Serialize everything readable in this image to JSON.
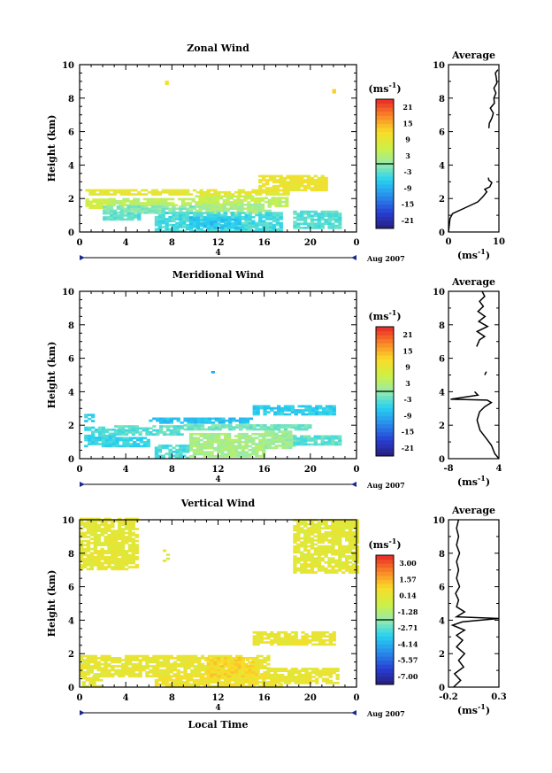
{
  "chart_data": [
    {
      "type": "heatmap",
      "title": "Zonal Wind",
      "ylabel": "Height (km)",
      "xlim": [
        0,
        24
      ],
      "ylim": [
        0,
        10
      ],
      "x_ticks": [
        "0",
        "4",
        "8",
        "12",
        "16",
        "20",
        "0"
      ],
      "y_ticks": [
        "0",
        "2",
        "4",
        "6",
        "8",
        "10"
      ],
      "date_label": "4",
      "month_label": "Aug 2007",
      "colorbar": {
        "unit": "(ms",
        "unit_exp": "-1",
        "ticks": [
          "21",
          "15",
          "9",
          "3",
          "-3",
          "-9",
          "-15",
          "-21"
        ],
        "range": [
          -24,
          24
        ]
      },
      "field_cells": [
        {
          "t0": 0.5,
          "t1": 2.5,
          "z0": 1.4,
          "z1": 1.9,
          "v": 6
        },
        {
          "t0": 2.5,
          "t1": 10,
          "z0": 1.55,
          "z1": 1.95,
          "v": 4
        },
        {
          "t0": 10,
          "t1": 16,
          "z0": 1.6,
          "z1": 2.1,
          "v": 5
        },
        {
          "t0": 16,
          "t1": 18,
          "z0": 1.5,
          "z1": 2.0,
          "v": 4
        },
        {
          "t0": 2,
          "t1": 10,
          "z0": 1.1,
          "z1": 1.55,
          "v": -1
        },
        {
          "t0": 10,
          "t1": 16.5,
          "z0": 1.1,
          "z1": 1.6,
          "v": 2
        },
        {
          "t0": 6.5,
          "t1": 17.5,
          "z0": 0,
          "z1": 1.1,
          "v": -4
        },
        {
          "t0": 2,
          "t1": 5,
          "z0": 0.7,
          "z1": 1.1,
          "v": -3
        },
        {
          "t0": 9.5,
          "t1": 14,
          "z0": 0.2,
          "z1": 0.9,
          "v": -7
        },
        {
          "t0": 0.5,
          "t1": 18,
          "z0": 2.2,
          "z1": 2.45,
          "v": 9
        },
        {
          "t0": 15.5,
          "t1": 21.5,
          "z0": 2.45,
          "z1": 3.3,
          "v": 10
        },
        {
          "t0": 18.5,
          "t1": 22.5,
          "z0": 0.2,
          "z1": 1.2,
          "v": -3
        },
        {
          "t0": 7.4,
          "t1": 7.7,
          "z0": 8.8,
          "z1": 9.0,
          "v": 10
        },
        {
          "t0": 21.9,
          "t1": 22.2,
          "z0": 8.3,
          "z1": 8.5,
          "v": 11
        }
      ],
      "average": {
        "title": "Average",
        "xlim": [
          0,
          10
        ],
        "ylim": [
          0,
          10
        ],
        "x_ticks": [
          "0",
          "10"
        ],
        "x_tick_values": [
          0,
          10
        ],
        "y_ticks": [
          "0",
          "2",
          "4",
          "6",
          "8",
          "10"
        ],
        "xlabel": "(ms",
        "xlabel_exp": "-1",
        "profile": [
          [
            0.0,
            0.0
          ],
          [
            0.3,
            0.8
          ],
          [
            0.8,
            1.1
          ],
          [
            3.0,
            1.4
          ],
          [
            5.8,
            1.8
          ],
          [
            6.8,
            2.1
          ],
          [
            7.6,
            2.4
          ],
          [
            7.2,
            2.55
          ],
          [
            8.2,
            2.7
          ],
          [
            8.6,
            2.95
          ],
          [
            8.0,
            3.1
          ],
          [
            7.9,
            3.25
          ],
          [
            null,
            null
          ],
          [
            8.0,
            6.2
          ],
          [
            8.1,
            6.5
          ],
          [
            8.6,
            6.8
          ],
          [
            8.9,
            7.1
          ],
          [
            8.3,
            7.4
          ],
          [
            9.1,
            7.7
          ],
          [
            9.0,
            8.0
          ],
          [
            9.4,
            8.3
          ],
          [
            9.0,
            8.6
          ],
          [
            9.6,
            8.9
          ],
          [
            9.5,
            9.2
          ],
          [
            9.3,
            9.5
          ],
          [
            9.8,
            9.7
          ]
        ]
      }
    },
    {
      "type": "heatmap",
      "title": "Meridional Wind",
      "ylabel": "Height (km)",
      "xlim": [
        0,
        24
      ],
      "ylim": [
        0,
        10
      ],
      "x_ticks": [
        "0",
        "4",
        "8",
        "12",
        "16",
        "20",
        "0"
      ],
      "y_ticks": [
        "0",
        "2",
        "4",
        "6",
        "8",
        "10"
      ],
      "date_label": "4",
      "month_label": "Aug 2007",
      "colorbar": {
        "unit": "(ms",
        "unit_exp": "-1",
        "ticks": [
          "21",
          "15",
          "9",
          "3",
          "-3",
          "-9",
          "-15",
          "-21"
        ],
        "range": [
          -24,
          24
        ]
      },
      "field_cells": [
        {
          "t0": 0.4,
          "t1": 1.2,
          "z0": 2.2,
          "z1": 2.6,
          "v": -6
        },
        {
          "t0": 6,
          "t1": 15,
          "z0": 2.1,
          "z1": 2.4,
          "v": -7
        },
        {
          "t0": 15,
          "t1": 22,
          "z0": 2.6,
          "z1": 3.1,
          "v": -6
        },
        {
          "t0": 0.4,
          "t1": 3,
          "z0": 1.2,
          "z1": 1.9,
          "v": -4
        },
        {
          "t0": 3,
          "t1": 9,
          "z0": 1.4,
          "z1": 1.9,
          "v": -3
        },
        {
          "t0": 9,
          "t1": 20,
          "z0": 1.7,
          "z1": 2.0,
          "v": -2
        },
        {
          "t0": 0.4,
          "t1": 6,
          "z0": 0.7,
          "z1": 1.3,
          "v": -5
        },
        {
          "t0": 9.5,
          "t1": 16,
          "z0": 0.1,
          "z1": 1.5,
          "v": 2
        },
        {
          "t0": 16,
          "t1": 18.5,
          "z0": 0.6,
          "z1": 1.6,
          "v": 1
        },
        {
          "t0": 18.5,
          "t1": 22.5,
          "z0": 0.8,
          "z1": 1.4,
          "v": -3
        },
        {
          "t0": 6.5,
          "t1": 9.5,
          "z0": 0,
          "z1": 0.8,
          "v": -4
        },
        {
          "t0": 11.4,
          "t1": 11.6,
          "z0": 5.0,
          "z1": 5.2,
          "v": -8
        }
      ],
      "average": {
        "title": "Average",
        "xlim": [
          -8,
          4
        ],
        "ylim": [
          0,
          10
        ],
        "x_ticks": [
          "-8",
          "4"
        ],
        "x_tick_values": [
          -8,
          4
        ],
        "y_ticks": [
          "0",
          "2",
          "4",
          "6",
          "8",
          "10"
        ],
        "xlabel": "(ms",
        "xlabel_exp": "-1",
        "profile": [
          [
            4.0,
            0.0
          ],
          [
            3.0,
            0.3
          ],
          [
            2.2,
            0.8
          ],
          [
            1.0,
            1.2
          ],
          [
            -0.5,
            1.7
          ],
          [
            -1.2,
            2.3
          ],
          [
            -0.6,
            2.8
          ],
          [
            0.6,
            3.1
          ],
          [
            2.2,
            3.35
          ],
          [
            1.2,
            3.5
          ],
          [
            -7.5,
            3.55
          ],
          [
            -1.0,
            3.8
          ],
          [
            -1.8,
            4.0
          ],
          [
            null,
            null
          ],
          [
            0.6,
            5.0
          ],
          [
            1.0,
            5.2
          ],
          [
            null,
            null
          ],
          [
            -1.3,
            6.7
          ],
          [
            -0.6,
            7.1
          ],
          [
            0.6,
            7.3
          ],
          [
            -1.2,
            7.6
          ],
          [
            1.3,
            7.9
          ],
          [
            -0.8,
            8.2
          ],
          [
            0.7,
            8.5
          ],
          [
            -1.0,
            8.8
          ],
          [
            0.3,
            9.1
          ],
          [
            -0.6,
            9.4
          ],
          [
            0.6,
            9.7
          ],
          [
            0.0,
            10.0
          ]
        ]
      }
    },
    {
      "type": "heatmap",
      "title": "Vertical Wind",
      "ylabel": "Height (km)",
      "xlabel": "Local Time",
      "xlim": [
        0,
        24
      ],
      "ylim": [
        0,
        10
      ],
      "x_ticks": [
        "0",
        "4",
        "8",
        "12",
        "16",
        "20",
        "0"
      ],
      "y_ticks": [
        "0",
        "2",
        "4",
        "6",
        "8",
        "10"
      ],
      "date_label": "4",
      "month_label": "Aug 2007",
      "colorbar": {
        "unit": "(ms",
        "unit_exp": "-1",
        "ticks": [
          "3.00",
          "1.57",
          "0.14",
          "-1.28",
          "-2.71",
          "-4.14",
          "-5.57",
          "-7.00"
        ],
        "range": [
          -7.71,
          3.71
        ]
      },
      "field_cells": [
        {
          "t0": 0,
          "t1": 16.5,
          "z0": 0.6,
          "z1": 1.9,
          "v": 0.2
        },
        {
          "t0": 6.5,
          "t1": 17.5,
          "z0": 0,
          "z1": 0.7,
          "v": 0.5
        },
        {
          "t0": 11,
          "t1": 15.5,
          "z0": 0.6,
          "z1": 1.8,
          "v": 0.9
        },
        {
          "t0": 16.5,
          "t1": 22.5,
          "z0": 0.2,
          "z1": 1.1,
          "v": 0.2
        },
        {
          "t0": 0.2,
          "t1": 2,
          "z0": 0,
          "z1": 0.7,
          "v": 0.1
        },
        {
          "t0": 15,
          "t1": 22,
          "z0": 2.5,
          "z1": 3.3,
          "v": 0.3
        },
        {
          "t0": 0,
          "t1": 5,
          "z0": 7.0,
          "z1": 10,
          "v": 0.1
        },
        {
          "t0": 18.5,
          "t1": 24,
          "z0": 6.8,
          "z1": 10,
          "v": 0.1
        },
        {
          "t0": 7.2,
          "t1": 7.6,
          "z0": 7.5,
          "z1": 8.2,
          "v": 0.1
        }
      ],
      "average": {
        "title": "Average",
        "xlim": [
          -0.2,
          0.3
        ],
        "ylim": [
          0,
          10
        ],
        "x_ticks": [
          "-0.2",
          "0.3"
        ],
        "x_tick_values": [
          -0.2,
          0.3
        ],
        "y_ticks": [
          "0",
          "2",
          "4",
          "6",
          "8",
          "10"
        ],
        "xlabel": "(ms",
        "xlabel_exp": "-1",
        "profile": [
          [
            -0.15,
            0.0
          ],
          [
            -0.08,
            0.4
          ],
          [
            -0.14,
            0.8
          ],
          [
            -0.05,
            1.2
          ],
          [
            -0.1,
            1.6
          ],
          [
            -0.04,
            2.0
          ],
          [
            -0.12,
            2.4
          ],
          [
            -0.06,
            2.8
          ],
          [
            -0.12,
            3.1
          ],
          [
            -0.04,
            3.4
          ],
          [
            -0.16,
            3.7
          ],
          [
            -0.06,
            3.9
          ],
          [
            0.3,
            4.1
          ],
          [
            -0.12,
            4.2
          ],
          [
            -0.04,
            4.5
          ],
          [
            -0.12,
            4.8
          ],
          [
            -0.1,
            5.2
          ],
          [
            -0.13,
            5.6
          ],
          [
            -0.09,
            6.0
          ],
          [
            -0.12,
            6.5
          ],
          [
            -0.1,
            7.0
          ],
          [
            -0.12,
            7.5
          ],
          [
            -0.09,
            8.0
          ],
          [
            -0.12,
            8.5
          ],
          [
            -0.1,
            9.0
          ],
          [
            -0.12,
            9.5
          ],
          [
            -0.1,
            10.0
          ]
        ]
      }
    }
  ]
}
